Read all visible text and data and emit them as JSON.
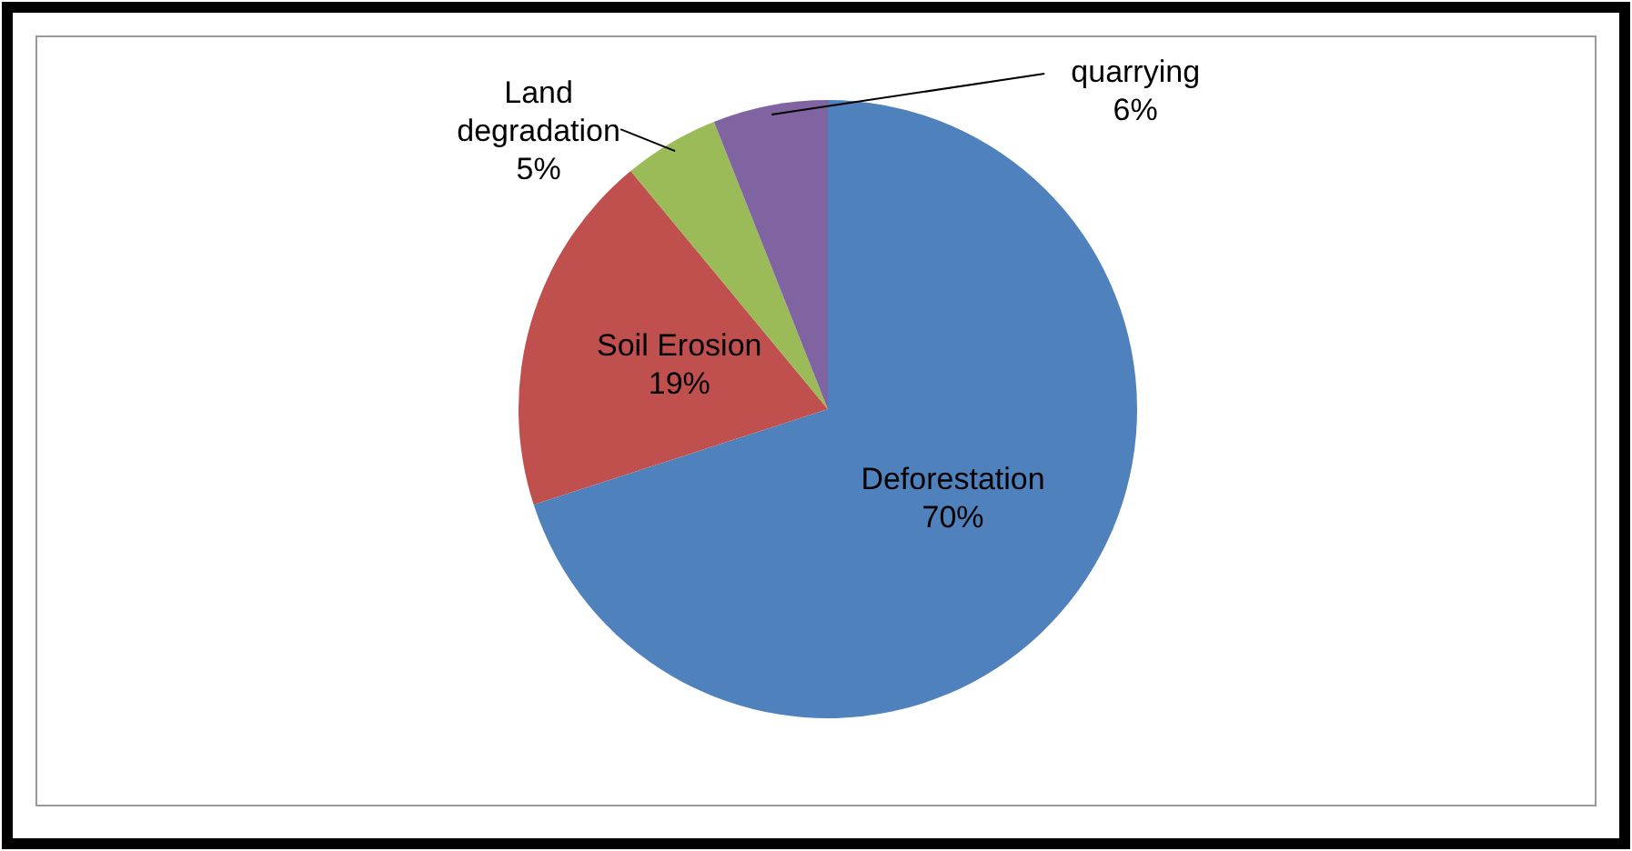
{
  "chart_data": {
    "type": "pie",
    "categories": [
      "Deforestation",
      "Soil Erosion",
      "Land degradation",
      "quarrying"
    ],
    "values": [
      70,
      19,
      5,
      6
    ],
    "colors": [
      "#4f81bd",
      "#c0504d",
      "#9bbb59",
      "#8064a2"
    ],
    "value_labels": [
      "70%",
      "19%",
      "5%",
      "6%"
    ]
  }
}
